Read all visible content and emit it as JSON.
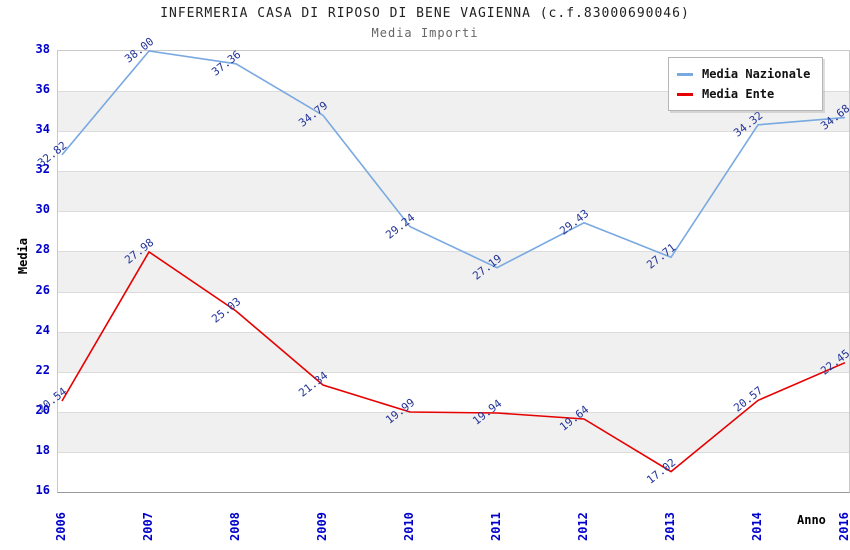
{
  "chart_data": {
    "type": "line",
    "title": "INFERMERIA CASA DI RIPOSO DI BENE VAGIENNA (c.f.83000690046)",
    "subtitle": "Media Importi",
    "xlabel": "Anno",
    "ylabel": "Media",
    "categories": [
      "2006",
      "2007",
      "2008",
      "2009",
      "2010",
      "2011",
      "2012",
      "2013",
      "2014",
      "2016"
    ],
    "series": [
      {
        "name": "Media Nazionale",
        "color": "#79a9e1",
        "values": [
          32.82,
          38.0,
          37.36,
          34.79,
          29.24,
          27.19,
          29.43,
          27.71,
          34.32,
          34.68
        ],
        "labels": [
          "32.82",
          "38.00",
          "37.36",
          "34.79",
          "29.24",
          "27.19",
          "29.43",
          "27.71",
          "34.32",
          "34.68"
        ]
      },
      {
        "name": "Media Ente",
        "color": "#e60000",
        "values": [
          20.54,
          27.98,
          25.03,
          21.34,
          19.99,
          19.94,
          19.64,
          17.02,
          20.57,
          22.45
        ],
        "labels": [
          "20.54",
          "27.98",
          "25.03",
          "21.34",
          "19.99",
          "19.94",
          "19.64",
          "17.02",
          "20.57",
          "22.45"
        ]
      }
    ],
    "ylim": [
      16,
      38
    ],
    "yticks": [
      16,
      18,
      20,
      22,
      24,
      26,
      28,
      30,
      32,
      34,
      36,
      38
    ],
    "grid": "horizontal",
    "bands_alternating": true,
    "band_color": "#f0f0f0",
    "tick_color": "#0000cc",
    "value_label_color": "#223399",
    "legend_position": "top-right"
  }
}
